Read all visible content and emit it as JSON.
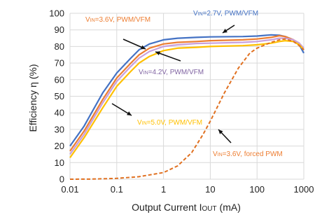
{
  "chart_data": {
    "type": "line",
    "x_scale": "log",
    "grid": true,
    "xlabel": {
      "main": "Output Current I",
      "sub": "OUT",
      "unit": " (mA)"
    },
    "ylabel": "Efficiency η (%)",
    "xlim": [
      0.01,
      1000
    ],
    "ylim": [
      0,
      100
    ],
    "x_ticks": [
      {
        "value": 0.01,
        "label": "0.01"
      },
      {
        "value": 0.1,
        "label": "0.1"
      },
      {
        "value": 1,
        "label": "1"
      },
      {
        "value": 10,
        "label": "10"
      },
      {
        "value": 100,
        "label": "100"
      },
      {
        "value": 1000,
        "label": "1000"
      }
    ],
    "y_ticks": [
      0,
      10,
      20,
      30,
      40,
      50,
      60,
      70,
      80,
      90,
      100
    ],
    "series": [
      {
        "name": "V_IN=2.7V, PWM/VFM",
        "color": "#4472c4",
        "dash": false,
        "points": [
          [
            0.01,
            20
          ],
          [
            0.02,
            32
          ],
          [
            0.05,
            52
          ],
          [
            0.1,
            64
          ],
          [
            0.2,
            73
          ],
          [
            0.3,
            78
          ],
          [
            0.5,
            81.5
          ],
          [
            1,
            84
          ],
          [
            2,
            85
          ],
          [
            5,
            85.5
          ],
          [
            10,
            85.8
          ],
          [
            50,
            86
          ],
          [
            100,
            86.3
          ],
          [
            200,
            87
          ],
          [
            300,
            86.8
          ],
          [
            400,
            86
          ],
          [
            600,
            84
          ],
          [
            800,
            81
          ],
          [
            1000,
            76
          ]
        ]
      },
      {
        "name": "V_IN=3.6V, PWM/VFM",
        "color": "#ed7d31",
        "dash": false,
        "points": [
          [
            0.01,
            17
          ],
          [
            0.02,
            29
          ],
          [
            0.05,
            48
          ],
          [
            0.1,
            61
          ],
          [
            0.2,
            70
          ],
          [
            0.3,
            75
          ],
          [
            0.5,
            79
          ],
          [
            1,
            81.5
          ],
          [
            2,
            82.5
          ],
          [
            5,
            83
          ],
          [
            10,
            83.5
          ],
          [
            50,
            84
          ],
          [
            100,
            84.5
          ],
          [
            200,
            85.5
          ],
          [
            300,
            86.5
          ],
          [
            400,
            86
          ],
          [
            600,
            84
          ],
          [
            800,
            82
          ],
          [
            1000,
            78
          ]
        ]
      },
      {
        "name": "V_IN=4.2V, PWM/VFM",
        "color": "#c9a0dc",
        "dash": false,
        "points": [
          [
            0.01,
            15
          ],
          [
            0.02,
            27
          ],
          [
            0.05,
            46
          ],
          [
            0.1,
            59
          ],
          [
            0.2,
            68
          ],
          [
            0.3,
            73
          ],
          [
            0.5,
            77
          ],
          [
            1,
            80
          ],
          [
            2,
            81
          ],
          [
            5,
            81.8
          ],
          [
            10,
            82
          ],
          [
            50,
            82.5
          ],
          [
            100,
            83
          ],
          [
            200,
            84
          ],
          [
            300,
            85
          ],
          [
            400,
            85
          ],
          [
            600,
            84
          ],
          [
            800,
            82
          ],
          [
            1000,
            79
          ]
        ]
      },
      {
        "name": "V_IN=5.0V, PWM/VFM",
        "color": "#ffc000",
        "dash": false,
        "points": [
          [
            0.01,
            13
          ],
          [
            0.02,
            25
          ],
          [
            0.05,
            43
          ],
          [
            0.1,
            56
          ],
          [
            0.2,
            65
          ],
          [
            0.3,
            70
          ],
          [
            0.5,
            74
          ],
          [
            1,
            77.5
          ],
          [
            2,
            79
          ],
          [
            5,
            79.5
          ],
          [
            10,
            80
          ],
          [
            50,
            80.5
          ],
          [
            100,
            81
          ],
          [
            200,
            82
          ],
          [
            300,
            83
          ],
          [
            400,
            83.5
          ],
          [
            600,
            83
          ],
          [
            800,
            81
          ],
          [
            1000,
            78
          ]
        ]
      },
      {
        "name": "V_IN=3.6V, forced PWM",
        "color": "#e07020",
        "dash": true,
        "points": [
          [
            0.01,
            0
          ],
          [
            0.03,
            0.1
          ],
          [
            0.1,
            0.5
          ],
          [
            0.3,
            1.5
          ],
          [
            1,
            4
          ],
          [
            2,
            8
          ],
          [
            4,
            16
          ],
          [
            7,
            27
          ],
          [
            10,
            35
          ],
          [
            20,
            52
          ],
          [
            40,
            67
          ],
          [
            70,
            76
          ],
          [
            100,
            79
          ],
          [
            200,
            82.5
          ],
          [
            300,
            84
          ],
          [
            400,
            84.5
          ],
          [
            600,
            83
          ],
          [
            800,
            80.5
          ],
          [
            1000,
            78
          ]
        ]
      }
    ],
    "annotations": [
      {
        "id": "v27",
        "main": "V",
        "sub": "IN",
        "rest": "=2.7V, PWM/VFM",
        "color": "#4472c4"
      },
      {
        "id": "v36",
        "main": "V",
        "sub": "IN",
        "rest": "=3.6V, PWM/VFM",
        "color": "#ed7d31"
      },
      {
        "id": "v42",
        "main": "V",
        "sub": "IN",
        "rest": "=4.2V, PWM/VFM",
        "color": "#8064a2"
      },
      {
        "id": "v50",
        "main": "V",
        "sub": "IN",
        "rest": "=5.0V, PWM/VFM",
        "color": "#ffc000"
      },
      {
        "id": "v36fp",
        "main": "V",
        "sub": "IN",
        "rest": "=3.6V, forced PWM",
        "color": "#ed7d31"
      }
    ]
  }
}
